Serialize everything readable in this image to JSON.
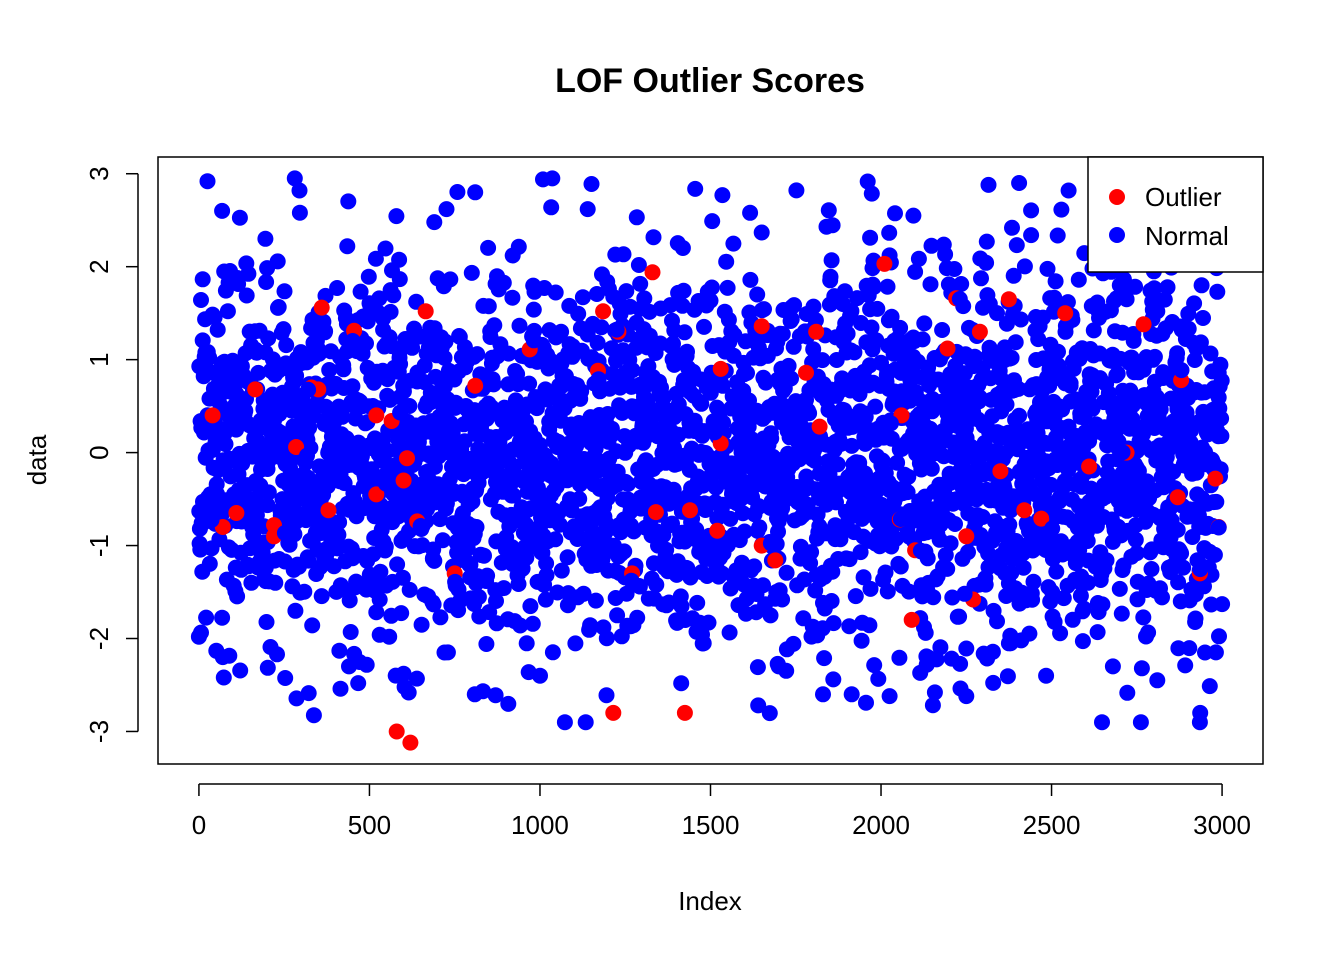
{
  "chart_data": {
    "type": "scatter",
    "title": "LOF Outlier Scores",
    "xlabel": "Index",
    "ylabel": "data",
    "xlim": [
      -120,
      3120
    ],
    "ylim": [
      -3.35,
      3.18
    ],
    "xticks": [
      0,
      500,
      1000,
      1500,
      2000,
      2500,
      3000
    ],
    "yticks": [
      -3,
      -2,
      -1,
      0,
      1,
      2,
      3
    ],
    "grid": false,
    "legend": {
      "position": "top-right",
      "entries": [
        {
          "label": "Outlier",
          "color": "#ff0000"
        },
        {
          "label": "Normal",
          "color": "#0000ff"
        }
      ]
    },
    "colors": {
      "outlier": "#ff0000",
      "normal": "#0000ff"
    },
    "series": [
      {
        "name": "Normal",
        "color": "#0000ff",
        "n_points": 3000,
        "distribution": "standard normal, estimated",
        "points": [
          [
            25,
            2.92
          ],
          [
            295,
            2.82
          ],
          [
            810,
            2.8
          ],
          [
            1535,
            2.77
          ],
          [
            2315,
            2.88
          ],
          [
            2405,
            2.9
          ],
          [
            2550,
            2.82
          ],
          [
            195,
            2.3
          ],
          [
            435,
            2.22
          ],
          [
            690,
            2.48
          ],
          [
            920,
            2.12
          ],
          [
            1140,
            2.62
          ],
          [
            1505,
            2.49
          ],
          [
            1840,
            2.43
          ],
          [
            2095,
            2.55
          ],
          [
            2310,
            2.27
          ],
          [
            2440,
            2.34
          ],
          [
            2860,
            2.05
          ],
          [
            0,
            -1.98
          ],
          [
            70,
            -2.2
          ],
          [
            415,
            -2.54
          ],
          [
            440,
            -2.3
          ],
          [
            530,
            -1.96
          ],
          [
            600,
            -2.38
          ],
          [
            720,
            -2.15
          ],
          [
            870,
            -2.61
          ],
          [
            1000,
            -2.4
          ],
          [
            1195,
            -2.61
          ],
          [
            1480,
            -2.05
          ],
          [
            1640,
            -2.72
          ],
          [
            1700,
            -2.3
          ],
          [
            1860,
            -2.44
          ],
          [
            2025,
            -2.62
          ],
          [
            2115,
            -2.37
          ],
          [
            2250,
            -2.62
          ],
          [
            2380,
            -2.05
          ],
          [
            2680,
            -2.3
          ],
          [
            2765,
            -2.32
          ],
          [
            2810,
            -2.45
          ],
          [
            2950,
            -2.15
          ],
          [
            2940,
            1.8
          ],
          [
            2800,
            1.95
          ],
          [
            2700,
            1.8
          ],
          [
            2620,
            1.98
          ],
          [
            2580,
            1.86
          ]
        ]
      },
      {
        "name": "Outlier",
        "color": "#ff0000",
        "points": [
          [
            580,
            -3.0
          ],
          [
            620,
            -3.12
          ],
          [
            1215,
            -2.8
          ],
          [
            1425,
            -2.8
          ],
          [
            2090,
            -1.8
          ],
          [
            2270,
            -1.58
          ],
          [
            2250,
            -0.9
          ],
          [
            750,
            -1.3
          ],
          [
            1270,
            -1.3
          ],
          [
            1650,
            -1.0
          ],
          [
            1690,
            -1.16
          ],
          [
            2100,
            -1.05
          ],
          [
            2990,
            -0.8
          ],
          [
            2980,
            -0.28
          ],
          [
            2935,
            -1.3
          ],
          [
            1330,
            1.94
          ],
          [
            2010,
            2.03
          ],
          [
            2220,
            1.66
          ],
          [
            2540,
            1.5
          ],
          [
            2375,
            1.65
          ],
          [
            1185,
            1.52
          ],
          [
            665,
            1.52
          ],
          [
            360,
            1.56
          ],
          [
            455,
            1.31
          ],
          [
            1810,
            1.3
          ],
          [
            2290,
            1.3
          ],
          [
            2770,
            1.38
          ],
          [
            1650,
            1.36
          ],
          [
            2195,
            1.12
          ],
          [
            970,
            1.11
          ],
          [
            1230,
            1.3
          ],
          [
            330,
            0.7
          ],
          [
            810,
            0.72
          ],
          [
            1170,
            0.88
          ],
          [
            1780,
            0.86
          ],
          [
            1820,
            0.28
          ],
          [
            1530,
            0.9
          ],
          [
            1530,
            0.1
          ],
          [
            2060,
            0.4
          ],
          [
            2055,
            -0.72
          ],
          [
            2420,
            -0.62
          ],
          [
            2470,
            -0.71
          ],
          [
            1520,
            -0.84
          ],
          [
            1440,
            -0.62
          ],
          [
            1340,
            -0.64
          ],
          [
            70,
            -0.8
          ],
          [
            220,
            -0.78
          ],
          [
            380,
            -0.62
          ],
          [
            520,
            -0.45
          ],
          [
            600,
            -0.3
          ],
          [
            640,
            -0.74
          ],
          [
            610,
            -0.06
          ],
          [
            565,
            0.34
          ],
          [
            520,
            0.4
          ],
          [
            350,
            0.68
          ],
          [
            165,
            0.68
          ],
          [
            285,
            0.06
          ],
          [
            220,
            -0.9
          ],
          [
            110,
            -0.65
          ],
          [
            40,
            0.4
          ],
          [
            2350,
            -0.2
          ],
          [
            2610,
            -0.15
          ],
          [
            2720,
            0.0
          ],
          [
            2880,
            0.78
          ],
          [
            2870,
            -0.48
          ]
        ]
      }
    ]
  }
}
